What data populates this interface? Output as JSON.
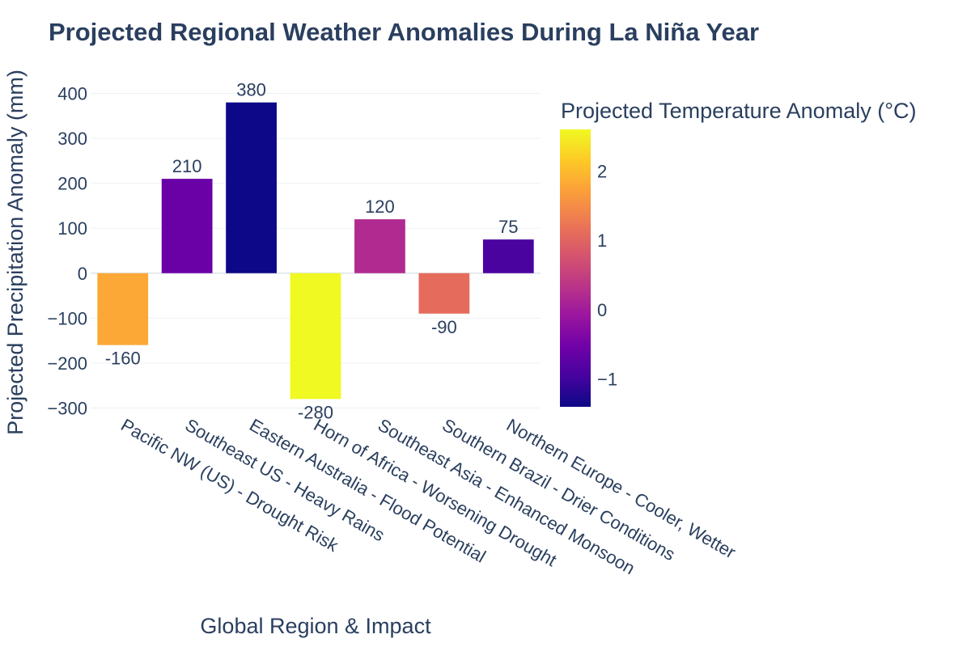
{
  "chart_data": {
    "type": "bar",
    "title": "Projected Regional Weather Anomalies During La Niña Year",
    "xlabel": "Global Region & Impact",
    "ylabel": "Projected Precipitation Anomaly (mm)",
    "categories": [
      "Pacific NW (US) - Drought Risk",
      "Southeast US - Heavy Rains",
      "Eastern Australia - Flood Potential",
      "Horn of Africa - Worsening Drought",
      "Southeast Asia - Enhanced Monsoon",
      "Southern Brazil - Drier Conditions",
      "Northern Europe - Cooler, Wetter"
    ],
    "values": [
      -160,
      210,
      380,
      -280,
      120,
      -90,
      75
    ],
    "value_labels": [
      "-160",
      "210",
      "380",
      "-280",
      "120",
      "-90",
      "75"
    ],
    "color_values": [
      1.8,
      -0.6,
      -1.4,
      2.6,
      0.2,
      1.1,
      -0.9
    ],
    "ylim": [
      -310,
      410
    ],
    "y_ticks": [
      400,
      300,
      200,
      100,
      0,
      -100,
      -200,
      -300
    ],
    "y_tick_labels": [
      "400",
      "300",
      "200",
      "100",
      "0",
      "−100",
      "−200",
      "−300"
    ],
    "grid": true,
    "colorbar": {
      "title": "Projected Temperature Anomaly (°C)",
      "range": [
        -1.4,
        2.6
      ],
      "ticks": [
        2,
        1,
        0,
        -1
      ],
      "tick_labels": [
        "2",
        "1",
        "0",
        "−1"
      ],
      "colorscale": [
        "#0d0887",
        "#46039f",
        "#7201a8",
        "#9c179e",
        "#bd3786",
        "#d8576b",
        "#ed7953",
        "#fb9f3a",
        "#fdca26",
        "#f0f921"
      ]
    }
  }
}
